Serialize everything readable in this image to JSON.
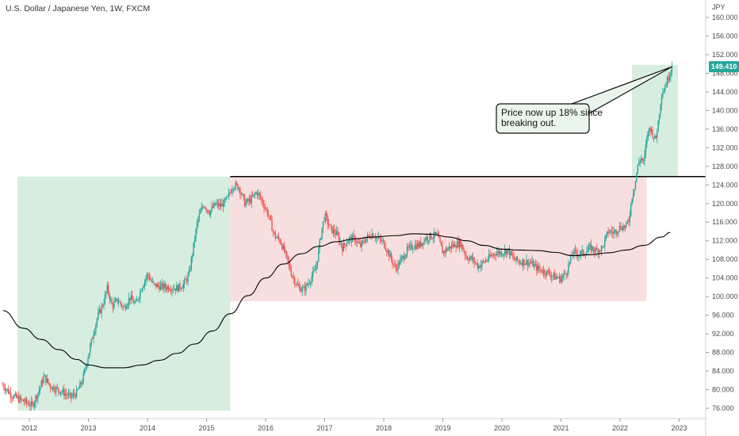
{
  "chart_data": {
    "type": "candlestick",
    "title": "U.S. Dollar / Japanese Yen, 1W, FXCM",
    "currency_label": "JPY",
    "last_price": 149.41,
    "last_price_label": "149.410",
    "annotation": [
      "Price now up 18% since",
      "breaking out."
    ],
    "y_ticks": [
      "76.000",
      "80.000",
      "84.000",
      "88.000",
      "92.000",
      "96.000",
      "100.000",
      "104.000",
      "108.000",
      "112.000",
      "116.000",
      "120.000",
      "124.000",
      "128.000",
      "132.000",
      "136.000",
      "140.000",
      "144.000",
      "148.000",
      "152.000",
      "156.000",
      "160.000"
    ],
    "x_ticks": [
      "2012",
      "2013",
      "2014",
      "2015",
      "2016",
      "2017",
      "2018",
      "2019",
      "2020",
      "2021",
      "2022",
      "2023"
    ],
    "ylim": [
      75,
      162
    ],
    "xlim": [
      2011.55,
      2023.7
    ],
    "horizontal_level": 125.8,
    "grid": false,
    "colors": {
      "up": "#26a69a",
      "down": "#ef5350",
      "green_zone": "#d7ede0",
      "red_zone": "#f8dfdf",
      "level_line": "#000000",
      "moving_average": "#000000",
      "last_price_tag": "#26a69a"
    },
    "zones": [
      {
        "kind": "green",
        "x": [
          2011.8,
          2015.4
        ],
        "y": [
          75.5,
          125.8
        ]
      },
      {
        "kind": "red",
        "x": [
          2015.4,
          2022.45
        ],
        "y": [
          99.0,
          125.8
        ]
      },
      {
        "kind": "green",
        "x": [
          2022.2,
          2022.98
        ],
        "y": [
          125.8,
          149.8
        ]
      }
    ],
    "moving_average": [
      [
        2011.55,
        97.0
      ],
      [
        2011.9,
        93.2
      ],
      [
        2012.2,
        90.8
      ],
      [
        2012.5,
        88.6
      ],
      [
        2012.8,
        86.5
      ],
      [
        2013.0,
        85.3
      ],
      [
        2013.3,
        84.7
      ],
      [
        2013.6,
        84.7
      ],
      [
        2013.9,
        85.3
      ],
      [
        2014.2,
        86.3
      ],
      [
        2014.5,
        87.8
      ],
      [
        2014.8,
        89.8
      ],
      [
        2015.1,
        92.6
      ],
      [
        2015.4,
        96.3
      ],
      [
        2015.7,
        100.2
      ],
      [
        2016.0,
        104.0
      ],
      [
        2016.3,
        107.0
      ],
      [
        2016.6,
        109.2
      ],
      [
        2016.9,
        110.8
      ],
      [
        2017.2,
        111.8
      ],
      [
        2017.5,
        112.4
      ],
      [
        2017.8,
        112.8
      ],
      [
        2018.2,
        113.1
      ],
      [
        2018.5,
        113.5
      ],
      [
        2018.8,
        113.4
      ],
      [
        2019.1,
        112.8
      ],
      [
        2019.4,
        112.0
      ],
      [
        2019.7,
        111.0
      ],
      [
        2020.0,
        110.2
      ],
      [
        2020.3,
        110.0
      ],
      [
        2020.6,
        109.9
      ],
      [
        2020.9,
        109.5
      ],
      [
        2021.2,
        108.8
      ],
      [
        2021.5,
        109.0
      ],
      [
        2021.8,
        109.4
      ],
      [
        2022.1,
        110.0
      ],
      [
        2022.4,
        111.0
      ],
      [
        2022.7,
        112.8
      ],
      [
        2022.85,
        113.8
      ]
    ],
    "price_path": [
      [
        2011.55,
        81.0
      ],
      [
        2011.7,
        78.8
      ],
      [
        2011.85,
        77.8
      ],
      [
        2012.05,
        76.6
      ],
      [
        2012.15,
        79.5
      ],
      [
        2012.25,
        82.8
      ],
      [
        2012.35,
        80.8
      ],
      [
        2012.55,
        79.6
      ],
      [
        2012.7,
        78.4
      ],
      [
        2012.8,
        79.3
      ],
      [
        2012.9,
        82.0
      ],
      [
        2013.0,
        87.5
      ],
      [
        2013.08,
        92.0
      ],
      [
        2013.15,
        95.5
      ],
      [
        2013.25,
        98.5
      ],
      [
        2013.32,
        101.8
      ],
      [
        2013.4,
        98.0
      ],
      [
        2013.5,
        99.2
      ],
      [
        2013.6,
        97.5
      ],
      [
        2013.7,
        99.8
      ],
      [
        2013.8,
        98.3
      ],
      [
        2013.9,
        102.0
      ],
      [
        2014.0,
        104.8
      ],
      [
        2014.1,
        102.5
      ],
      [
        2014.2,
        102.2
      ],
      [
        2014.35,
        102.0
      ],
      [
        2014.5,
        101.8
      ],
      [
        2014.6,
        102.5
      ],
      [
        2014.7,
        104.5
      ],
      [
        2014.75,
        108.5
      ],
      [
        2014.85,
        116.5
      ],
      [
        2014.95,
        119.8
      ],
      [
        2015.05,
        118.2
      ],
      [
        2015.15,
        119.8
      ],
      [
        2015.25,
        119.5
      ],
      [
        2015.35,
        121.0
      ],
      [
        2015.45,
        124.0
      ],
      [
        2015.55,
        123.5
      ],
      [
        2015.65,
        120.0
      ],
      [
        2015.75,
        120.8
      ],
      [
        2015.85,
        122.5
      ],
      [
        2015.95,
        120.3
      ],
      [
        2016.05,
        117.5
      ],
      [
        2016.15,
        113.0
      ],
      [
        2016.25,
        112.0
      ],
      [
        2016.35,
        108.5
      ],
      [
        2016.45,
        104.5
      ],
      [
        2016.55,
        102.0
      ],
      [
        2016.65,
        101.5
      ],
      [
        2016.75,
        103.5
      ],
      [
        2016.85,
        106.0
      ],
      [
        2016.95,
        114.5
      ],
      [
        2017.0,
        117.5
      ],
      [
        2017.1,
        114.5
      ],
      [
        2017.2,
        113.5
      ],
      [
        2017.3,
        110.5
      ],
      [
        2017.4,
        112.3
      ],
      [
        2017.5,
        112.5
      ],
      [
        2017.6,
        110.8
      ],
      [
        2017.7,
        112.5
      ],
      [
        2017.8,
        113.5
      ],
      [
        2017.9,
        112.5
      ],
      [
        2018.0,
        111.5
      ],
      [
        2018.1,
        108.8
      ],
      [
        2018.2,
        106.0
      ],
      [
        2018.3,
        108.0
      ],
      [
        2018.4,
        110.0
      ],
      [
        2018.5,
        111.0
      ],
      [
        2018.6,
        111.0
      ],
      [
        2018.7,
        112.5
      ],
      [
        2018.8,
        113.0
      ],
      [
        2018.9,
        113.2
      ],
      [
        2019.0,
        109.5
      ],
      [
        2019.1,
        110.5
      ],
      [
        2019.2,
        111.2
      ],
      [
        2019.3,
        111.5
      ],
      [
        2019.4,
        108.5
      ],
      [
        2019.5,
        108.0
      ],
      [
        2019.6,
        106.5
      ],
      [
        2019.7,
        107.5
      ],
      [
        2019.8,
        108.5
      ],
      [
        2019.9,
        109.5
      ],
      [
        2020.0,
        109.5
      ],
      [
        2020.1,
        110.0
      ],
      [
        2020.2,
        108.0
      ],
      [
        2020.3,
        107.5
      ],
      [
        2020.4,
        107.5
      ],
      [
        2020.5,
        107.2
      ],
      [
        2020.6,
        106.0
      ],
      [
        2020.7,
        105.5
      ],
      [
        2020.8,
        105.0
      ],
      [
        2020.9,
        104.2
      ],
      [
        2021.0,
        103.8
      ],
      [
        2021.1,
        105.5
      ],
      [
        2021.2,
        109.5
      ],
      [
        2021.3,
        109.2
      ],
      [
        2021.4,
        109.5
      ],
      [
        2021.5,
        110.5
      ],
      [
        2021.6,
        109.8
      ],
      [
        2021.7,
        110.5
      ],
      [
        2021.8,
        114.0
      ],
      [
        2021.9,
        113.8
      ],
      [
        2022.0,
        115.0
      ],
      [
        2022.1,
        115.0
      ],
      [
        2022.15,
        116.5
      ],
      [
        2022.2,
        121.5
      ],
      [
        2022.25,
        124.0
      ],
      [
        2022.3,
        128.0
      ],
      [
        2022.35,
        130.0
      ],
      [
        2022.4,
        128.5
      ],
      [
        2022.45,
        134.0
      ],
      [
        2022.5,
        136.5
      ],
      [
        2022.55,
        135.0
      ],
      [
        2022.6,
        133.5
      ],
      [
        2022.65,
        138.0
      ],
      [
        2022.7,
        143.5
      ],
      [
        2022.75,
        144.8
      ],
      [
        2022.8,
        146.5
      ],
      [
        2022.85,
        148.5
      ],
      [
        2022.88,
        149.41
      ]
    ]
  }
}
